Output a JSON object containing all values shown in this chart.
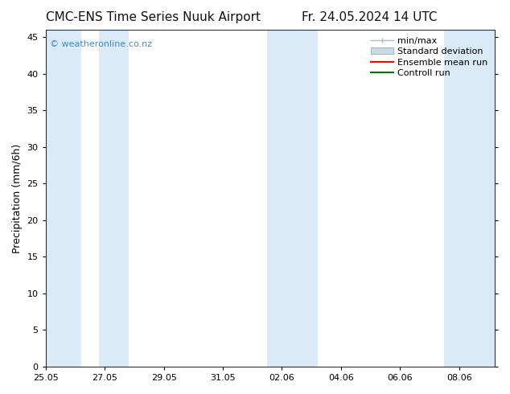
{
  "title_left": "CMC-ENS Time Series Nuuk Airport",
  "title_right": "Fr. 24.05.2024 14 UTC",
  "ylabel": "Precipitation (mm/6h)",
  "ylim": [
    0,
    46
  ],
  "yticks": [
    0,
    5,
    10,
    15,
    20,
    25,
    30,
    35,
    40,
    45
  ],
  "xtick_labels": [
    "25.05",
    "27.05",
    "29.05",
    "31.05",
    "02.06",
    "04.06",
    "06.06",
    "08.06"
  ],
  "xtick_positions": [
    0,
    2,
    4,
    6,
    8,
    10,
    12,
    14
  ],
  "xlim": [
    0,
    15.2
  ],
  "background_color": "#ffffff",
  "shaded_band_color": "#daeaf7",
  "shaded_bands": [
    [
      0.0,
      1.2
    ],
    [
      1.8,
      2.8
    ],
    [
      7.5,
      9.2
    ],
    [
      13.5,
      15.2
    ]
  ],
  "watermark_text": "© weatheronline.co.nz",
  "watermark_color": "#4488cc",
  "legend_items": [
    {
      "label": "min/max",
      "color": "#b0c8d8",
      "type": "errorbar"
    },
    {
      "label": "Standard deviation",
      "color": "#c8dce8",
      "type": "bar"
    },
    {
      "label": "Ensemble mean run",
      "color": "#ff0000",
      "type": "line"
    },
    {
      "label": "Controll run",
      "color": "#007700",
      "type": "line"
    }
  ],
  "title_fontsize": 11,
  "axis_label_fontsize": 9,
  "tick_fontsize": 8,
  "legend_fontsize": 8
}
